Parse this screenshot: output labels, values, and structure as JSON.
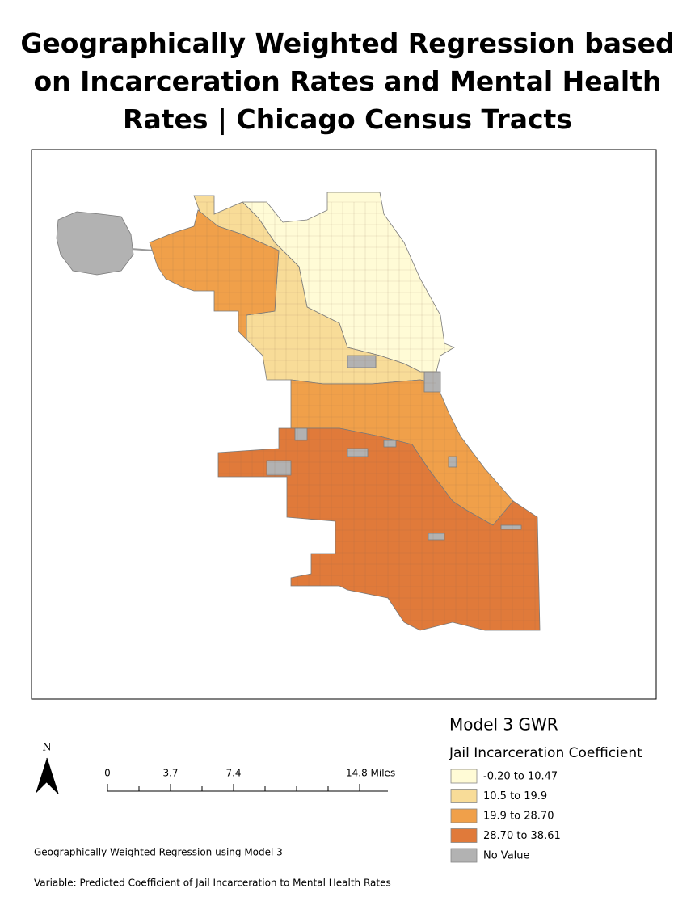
{
  "title": "Geographically Weighted Regression based on Incarceration Rates and Mental Health Rates | Chicago Census Tracts",
  "legend": {
    "title": "Model 3 GWR",
    "subtitle": "Jail Incarceration Coefficient",
    "items": [
      {
        "label": "-0.20 to 10.47",
        "color": "#fffbd6"
      },
      {
        "label": "10.5 to 19.9",
        "color": "#f8dc98"
      },
      {
        "label": "19.9 to 28.70",
        "color": "#f0a04a"
      },
      {
        "label": "28.70 to 38.61",
        "color": "#e07a3a"
      },
      {
        "label": "No Value",
        "color": "#b2b2b2"
      }
    ]
  },
  "north_arrow": "N",
  "scale_bar": {
    "labels": [
      "0",
      "3.7",
      "7.4",
      "14.8 Miles"
    ]
  },
  "footnotes": [
    "Geographically Weighted Regression using Model 3",
    "Variable: Predicted Coefficient of Jail Incarceration to Mental Health Rates"
  ]
}
